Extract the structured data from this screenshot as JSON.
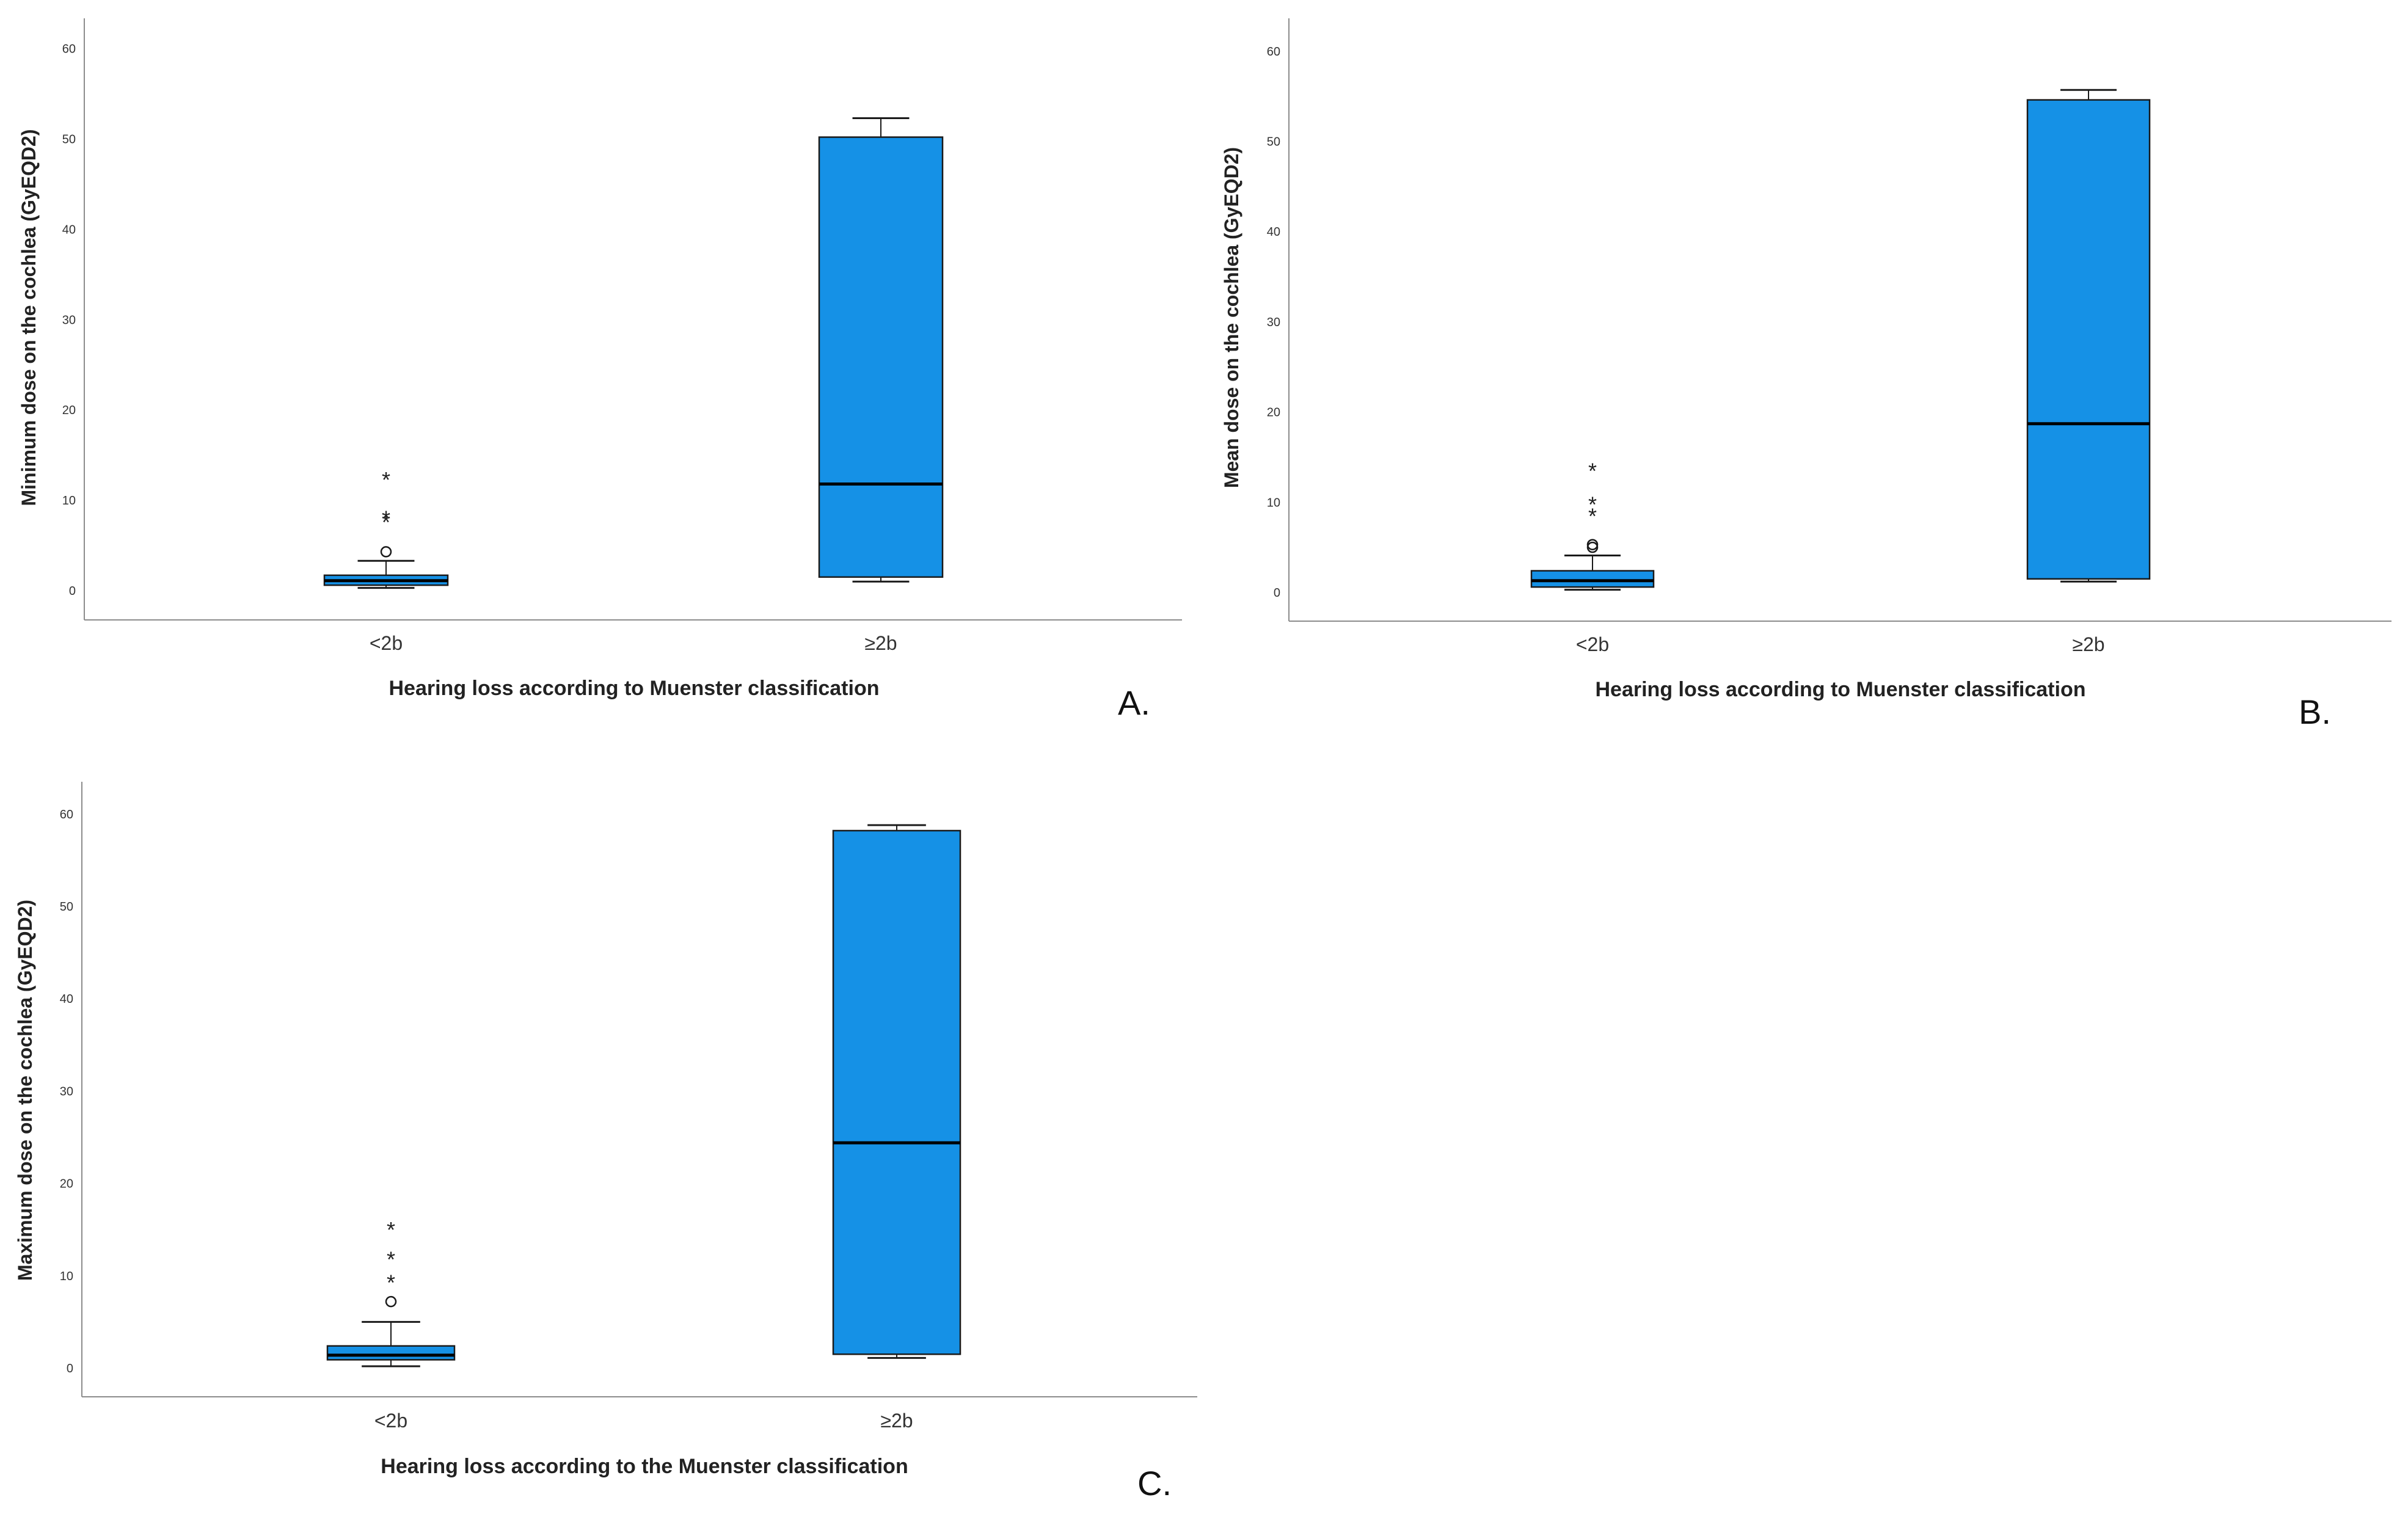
{
  "colors": {
    "box_fill": "#1591e6",
    "box_edge": "#1a1a1a",
    "axis": "#8c8c8c",
    "text": "#222222"
  },
  "chart_data": [
    {
      "id": "a",
      "type": "box",
      "panel_label": "A.",
      "title": "",
      "xlabel": "Hearing loss according to Muenster classification",
      "ylabel": "Minimum dose on the cochlea (GyEQD2)",
      "ylim": [
        -3,
        64
      ],
      "yticks": [
        0,
        10,
        20,
        30,
        40,
        50,
        60
      ],
      "categories": [
        "<2b",
        "≥2b"
      ],
      "boxes": [
        {
          "category": "<2b",
          "whisker_low": 0.3,
          "q1": 0.6,
          "median": 1.1,
          "q3": 1.7,
          "whisker_high": 3.3,
          "outliers": [
            4.3
          ],
          "extremes": [
            7.8,
            8.2,
            12.5
          ]
        },
        {
          "category": "≥2b",
          "whisker_low": 1.0,
          "q1": 1.5,
          "median": 11.8,
          "q3": 50.2,
          "whisker_high": 52.3,
          "outliers": [],
          "extremes": []
        }
      ]
    },
    {
      "id": "b",
      "type": "box",
      "panel_label": "B.",
      "title": "",
      "xlabel": "Hearing loss according to Muenster classification",
      "ylabel": "Mean dose on the cochlea (GyEQD2)",
      "ylim": [
        -3,
        64
      ],
      "yticks": [
        0,
        10,
        20,
        30,
        40,
        50,
        60
      ],
      "categories": [
        "<2b",
        "≥2b"
      ],
      "boxes": [
        {
          "category": "<2b",
          "whisker_low": 0.3,
          "q1": 0.6,
          "median": 1.3,
          "q3": 2.4,
          "whisker_high": 4.1,
          "outliers": [
            5.0,
            5.3
          ],
          "extremes": [
            8.7,
            10.0,
            13.7
          ]
        },
        {
          "category": "≥2b",
          "whisker_low": 1.2,
          "q1": 1.5,
          "median": 18.7,
          "q3": 54.6,
          "whisker_high": 55.7,
          "outliers": [],
          "extremes": []
        }
      ]
    },
    {
      "id": "c",
      "type": "box",
      "panel_label": "C.",
      "title": "",
      "xlabel": "Hearing loss according to the Muenster classification",
      "ylabel": "Maximum dose on the cochlea (GyEQD2)",
      "ylim": [
        -3,
        64
      ],
      "yticks": [
        0,
        10,
        20,
        30,
        40,
        50,
        60
      ],
      "categories": [
        "<2b",
        "≥2b"
      ],
      "boxes": [
        {
          "category": "<2b",
          "whisker_low": 0.2,
          "q1": 0.9,
          "median": 1.4,
          "q3": 2.4,
          "whisker_high": 5.0,
          "outliers": [
            7.2
          ],
          "extremes": [
            9.5,
            12.0,
            15.2
          ]
        },
        {
          "category": "≥2b",
          "whisker_low": 1.1,
          "q1": 1.5,
          "median": 24.4,
          "q3": 58.2,
          "whisker_high": 58.8,
          "outliers": [],
          "extremes": []
        }
      ]
    }
  ]
}
